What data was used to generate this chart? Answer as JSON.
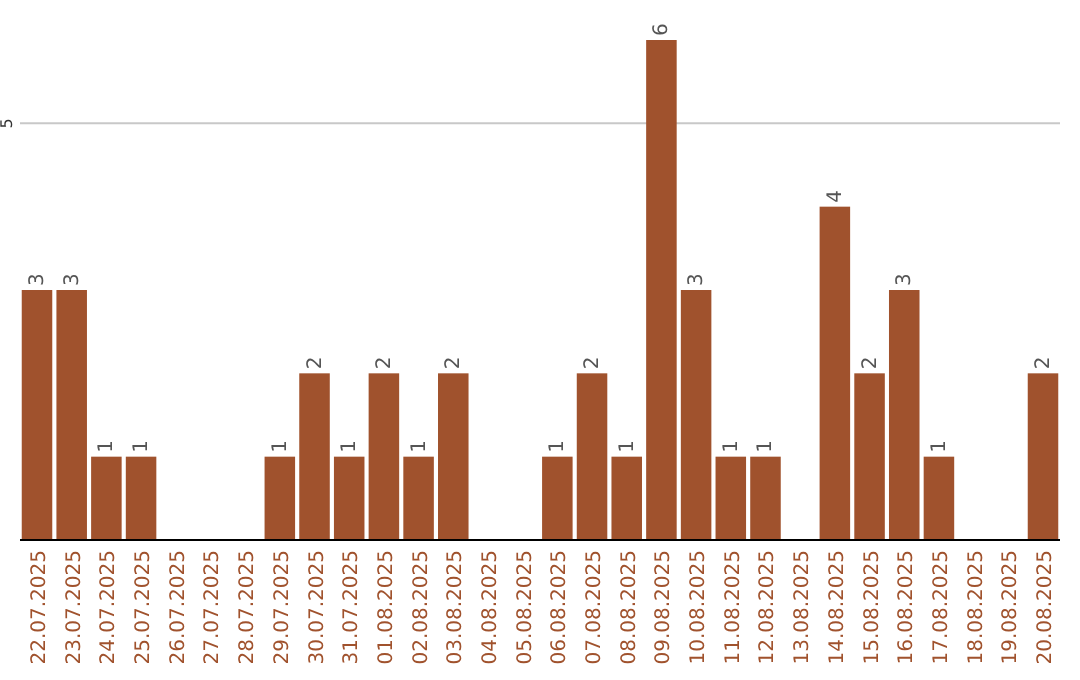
{
  "chart_data": {
    "type": "bar",
    "categories": [
      "22.07.2025",
      "23.07.2025",
      "24.07.2025",
      "25.07.2025",
      "26.07.2025",
      "27.07.2025",
      "28.07.2025",
      "29.07.2025",
      "30.07.2025",
      "31.07.2025",
      "01.08.2025",
      "02.08.2025",
      "03.08.2025",
      "04.08.2025",
      "05.08.2025",
      "06.08.2025",
      "07.08.2025",
      "08.08.2025",
      "09.08.2025",
      "10.08.2025",
      "11.08.2025",
      "12.08.2025",
      "13.08.2025",
      "14.08.2025",
      "15.08.2025",
      "16.08.2025",
      "17.08.2025",
      "18.08.2025",
      "19.08.2025",
      "20.08.2025"
    ],
    "values": [
      3,
      3,
      1,
      1,
      0,
      0,
      0,
      1,
      2,
      1,
      2,
      1,
      2,
      0,
      0,
      1,
      2,
      1,
      6,
      3,
      1,
      1,
      0,
      4,
      2,
      3,
      1,
      0,
      0,
      2
    ],
    "value_labels": [
      "3",
      "3",
      "1",
      "1",
      null,
      null,
      null,
      "1",
      "2",
      "1",
      "2",
      "1",
      "2",
      null,
      null,
      "1",
      "2",
      "1",
      "6",
      "3",
      "1",
      "1",
      null,
      "4",
      "2",
      "3",
      "1",
      null,
      null,
      "2"
    ],
    "color": "#a0522d",
    "ylim": [
      0,
      6
    ],
    "yticks": [
      5
    ],
    "grid": "y"
  }
}
